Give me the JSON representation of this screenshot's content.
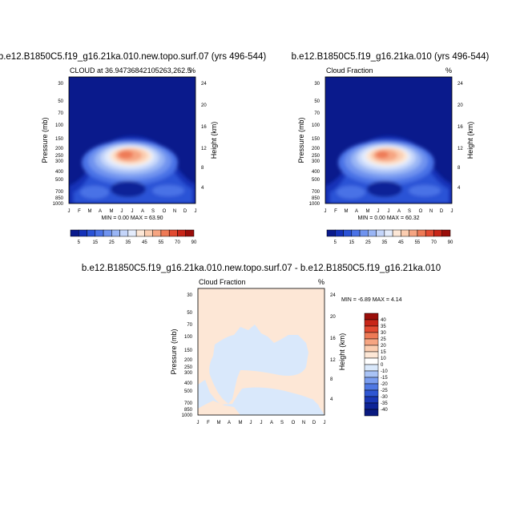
{
  "chart_data": [
    {
      "type": "heatmap",
      "title": "b.e12.B1850C5.f19_g16.21ka.010.new.topo.surf.07 (yrs 496-544)",
      "left_label": "CLOUD at 36.94736842105263,262.5",
      "right_label": "%",
      "ylabel": "Pressure (mb)",
      "y2label": "Height (km)",
      "xticks": [
        "J",
        "F",
        "M",
        "A",
        "M",
        "J",
        "J",
        "A",
        "S",
        "O",
        "N",
        "D",
        "J"
      ],
      "yticks": [
        30,
        50,
        70,
        100,
        150,
        200,
        250,
        300,
        400,
        500,
        700,
        850,
        1000
      ],
      "y2ticks": [
        4,
        8,
        12,
        16,
        20,
        24
      ],
      "ylim": [
        1000,
        25
      ],
      "stats": "MIN =   0.00 MAX =  63.90",
      "colorbar": {
        "labels": [
          "5",
          "15",
          "25",
          "35",
          "45",
          "55",
          "70",
          "90"
        ],
        "colors": [
          "#0a1a8c",
          "#1431b8",
          "#2a52d6",
          "#4a72e6",
          "#6f93ef",
          "#99b5f5",
          "#c4d5fa",
          "#e4ecfc",
          "#fde7d6",
          "#fbcdb0",
          "#f6a582",
          "#ee7a56",
          "#e24a31",
          "#c82618",
          "#9a0e0a"
        ]
      },
      "max_value": 63.9
    },
    {
      "type": "heatmap",
      "title": "b.e12.B1850C5.f19_g16.21ka.010 (yrs 496-544)",
      "left_label": "Cloud Fraction",
      "right_label": "%",
      "ylabel": "Pressure (mb)",
      "y2label": "Height (km)",
      "xticks": [
        "J",
        "F",
        "M",
        "A",
        "M",
        "J",
        "J",
        "A",
        "S",
        "O",
        "N",
        "D",
        "J"
      ],
      "yticks": [
        30,
        50,
        70,
        100,
        150,
        200,
        250,
        300,
        400,
        500,
        700,
        850,
        1000
      ],
      "y2ticks": [
        4,
        8,
        12,
        16,
        20,
        24
      ],
      "ylim": [
        1000,
        25
      ],
      "stats": "MIN =   0.00 MAX =  60.32",
      "colorbar": {
        "labels": [
          "5",
          "15",
          "25",
          "35",
          "45",
          "55",
          "70",
          "90"
        ],
        "colors": [
          "#0a1a8c",
          "#1431b8",
          "#2a52d6",
          "#4a72e6",
          "#6f93ef",
          "#99b5f5",
          "#c4d5fa",
          "#e4ecfc",
          "#fde7d6",
          "#fbcdb0",
          "#f6a582",
          "#ee7a56",
          "#e24a31",
          "#c82618",
          "#9a0e0a"
        ]
      },
      "max_value": 60.32
    },
    {
      "type": "heatmap",
      "title": "b.e12.B1850C5.f19_g16.21ka.010.new.topo.surf.07 - b.e12.B1850C5.f19_g16.21ka.010",
      "left_label": "Cloud Fraction",
      "right_label": "%",
      "ylabel": "Pressure (mb)",
      "y2label": "Height (km)",
      "xticks": [
        "J",
        "F",
        "M",
        "A",
        "M",
        "J",
        "J",
        "A",
        "S",
        "O",
        "N",
        "D",
        "J"
      ],
      "yticks": [
        30,
        50,
        70,
        100,
        150,
        200,
        250,
        300,
        400,
        500,
        700,
        850,
        1000
      ],
      "y2ticks": [
        4,
        8,
        12,
        16,
        20,
        24
      ],
      "ylim": [
        1000,
        25
      ],
      "stats": "MIN =  -6.89 MAX =   4.14",
      "colorbar": {
        "labels": [
          "40",
          "35",
          "30",
          "25",
          "20",
          "15",
          "10",
          "0",
          "-10",
          "-15",
          "-20",
          "-25",
          "-30",
          "-35",
          "-40"
        ],
        "colors": [
          "#9a0e0a",
          "#c82618",
          "#e24a31",
          "#ee7a56",
          "#f6a582",
          "#fbcdb0",
          "#fde7d6",
          "#ffffff",
          "#d9e8fb",
          "#a9c3f5",
          "#7b9ef0",
          "#4f78e3",
          "#2f56d2",
          "#1a37b5",
          "#0e2497",
          "#0a1a80"
        ]
      },
      "min_value": -6.89,
      "max_value": 4.14
    }
  ]
}
